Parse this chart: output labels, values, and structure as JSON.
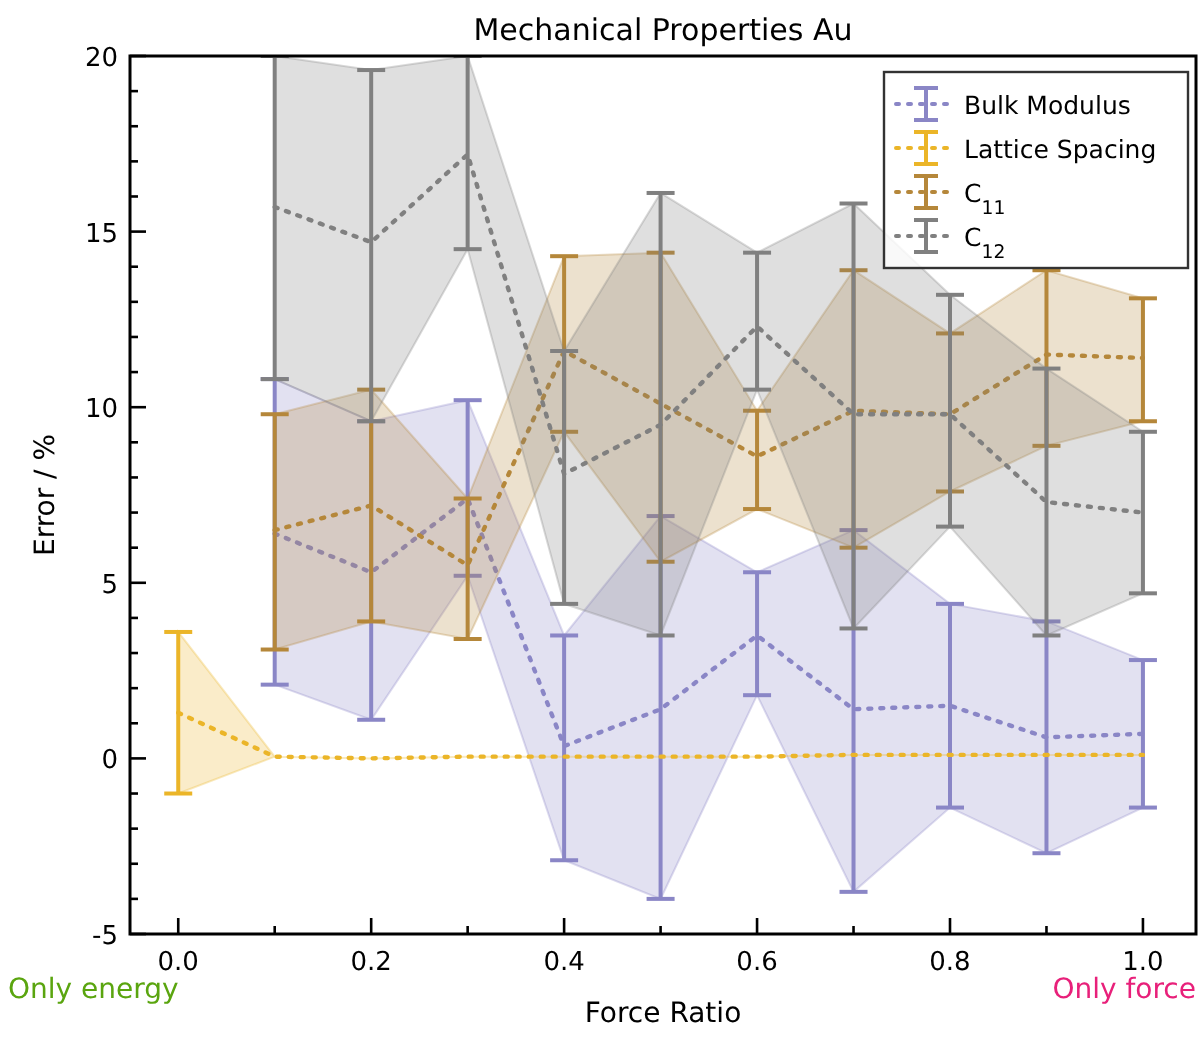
{
  "chart_data": {
    "type": "line",
    "title": "Mechanical Properties Au",
    "xlabel": "Force Ratio",
    "ylabel": "Error / %",
    "x": [
      0.0,
      0.1,
      0.2,
      0.3,
      0.4,
      0.5,
      0.6,
      0.7,
      0.8,
      0.9,
      1.0
    ],
    "xlim": [
      -0.05,
      1.055
    ],
    "ylim": [
      -5,
      20
    ],
    "xticks": [
      {
        "value": 0,
        "label": "0.0"
      },
      {
        "value": 0.1,
        "label": null
      },
      {
        "value": 0.2,
        "label": "0.2"
      },
      {
        "value": 0.3,
        "label": null
      },
      {
        "value": 0.4,
        "label": "0.4"
      },
      {
        "value": 0.5,
        "label": null
      },
      {
        "value": 0.6,
        "label": "0.6"
      },
      {
        "value": 0.7,
        "label": null
      },
      {
        "value": 0.8,
        "label": "0.8"
      },
      {
        "value": 0.9,
        "label": null
      },
      {
        "value": 1.0,
        "label": "1.0"
      }
    ],
    "yticks": [
      -5,
      {
        "value": -4,
        "label": null
      },
      {
        "value": -3,
        "label": null
      },
      {
        "value": -2,
        "label": null
      },
      {
        "value": -1,
        "label": null
      },
      0,
      {
        "value": 1,
        "label": null
      },
      {
        "value": 2,
        "label": null
      },
      {
        "value": 3,
        "label": null
      },
      {
        "value": 4,
        "label": null
      },
      5,
      {
        "value": 6,
        "label": null
      },
      {
        "value": 7,
        "label": null
      },
      {
        "value": 8,
        "label": null
      },
      {
        "value": 9,
        "label": null
      },
      10,
      {
        "value": 11,
        "label": null
      },
      {
        "value": 12,
        "label": null
      },
      {
        "value": 13,
        "label": null
      },
      {
        "value": 14,
        "label": null
      },
      15,
      {
        "value": 16,
        "label": null
      },
      {
        "value": 17,
        "label": null
      },
      {
        "value": 18,
        "label": null
      },
      {
        "value": 19,
        "label": null
      },
      20
    ],
    "legend": "top right",
    "grid": false,
    "marker": "none",
    "line_style": "dotted",
    "series": [
      {
        "name": "Bulk Modulus",
        "color": "#8a86c6",
        "values": [
          null,
          6.4,
          5.3,
          7.4,
          0.35,
          1.4,
          3.5,
          1.4,
          1.5,
          0.6,
          0.7
        ],
        "errors": [
          null,
          [
            2.1,
            10.8
          ],
          [
            1.1,
            9.6
          ],
          [
            5.2,
            10.2
          ],
          [
            -2.9,
            3.5
          ],
          [
            -4.0,
            6.9
          ],
          [
            1.8,
            5.3
          ],
          [
            -3.8,
            6.5
          ],
          [
            -1.4,
            4.4
          ],
          [
            -2.7,
            3.9
          ],
          [
            -1.4,
            2.8
          ]
        ],
        "lower": [
          null,
          2.1,
          1.1,
          5.2,
          -2.9,
          -4.0,
          1.8,
          -3.8,
          -1.4,
          -2.7,
          -1.4
        ],
        "upper": [
          null,
          10.8,
          9.6,
          10.2,
          3.5,
          6.9,
          5.3,
          6.5,
          4.4,
          3.9,
          2.8
        ]
      },
      {
        "name": "Lattice Spacing",
        "color": "#ebb528",
        "values": [
          1.3,
          0.05,
          0.0,
          0.05,
          0.05,
          0.05,
          0.05,
          0.1,
          0.1,
          0.1,
          0.1
        ],
        "errors": [
          [
            -1.0,
            3.6
          ],
          null,
          null,
          null,
          null,
          null,
          null,
          null,
          null,
          null,
          null
        ],
        "lower": [
          -1.0,
          0.05,
          0.0,
          0.05,
          0.05,
          0.05,
          0.05,
          0.1,
          0.1,
          0.1,
          0.1
        ],
        "upper": [
          3.6,
          0.05,
          0.0,
          0.05,
          0.05,
          0.05,
          0.05,
          0.1,
          0.1,
          0.1,
          0.1
        ]
      },
      {
        "name": "C$_{11}$",
        "color": "#b5873a",
        "values": [
          null,
          6.5,
          7.2,
          5.5,
          11.6,
          10.1,
          8.6,
          9.9,
          9.8,
          11.5,
          11.4
        ],
        "errors": [
          null,
          [
            3.1,
            9.8
          ],
          [
            3.9,
            10.5
          ],
          [
            3.4,
            7.4
          ],
          [
            9.3,
            14.3
          ],
          [
            5.6,
            14.4
          ],
          [
            7.1,
            9.9
          ],
          [
            6.0,
            13.9
          ],
          [
            7.6,
            12.1
          ],
          [
            8.9,
            13.9
          ],
          [
            9.6,
            13.1
          ]
        ],
        "lower": [
          null,
          3.1,
          3.9,
          3.4,
          9.3,
          5.6,
          7.1,
          6.0,
          7.6,
          8.9,
          9.6
        ],
        "upper": [
          null,
          9.8,
          10.5,
          7.4,
          14.3,
          14.4,
          9.9,
          13.9,
          12.1,
          13.9,
          13.1
        ]
      },
      {
        "name": "C$_{12}$",
        "color": "#808080",
        "values": [
          null,
          15.7,
          14.7,
          17.2,
          8.1,
          9.5,
          12.3,
          9.8,
          9.8,
          7.3,
          7.0
        ],
        "errors": [
          null,
          [
            10.8,
            20
          ],
          [
            9.6,
            19.6
          ],
          [
            14.5,
            20
          ],
          [
            4.4,
            11.6
          ],
          [
            3.5,
            16.1
          ],
          [
            10.5,
            14.4
          ],
          [
            3.7,
            15.8
          ],
          [
            6.6,
            13.2
          ],
          [
            3.5,
            11.1
          ],
          [
            4.7,
            9.3
          ]
        ],
        "lower": [
          null,
          10.8,
          9.6,
          14.5,
          4.4,
          3.5,
          10.5,
          3.7,
          6.6,
          3.5,
          4.7
        ],
        "upper": [
          null,
          20,
          19.6,
          20,
          11.6,
          16.1,
          14.4,
          15.8,
          13.2,
          11.1,
          9.3
        ]
      }
    ],
    "annotations": [
      "Only energy",
      "Only force"
    ]
  }
}
